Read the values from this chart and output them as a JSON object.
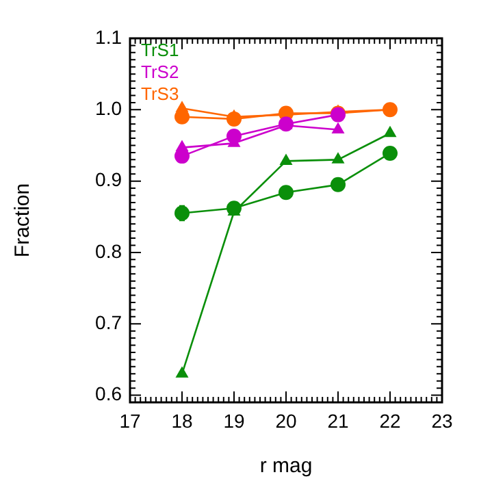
{
  "chart_data": {
    "type": "line",
    "xlabel": "r mag",
    "ylabel": "Fraction",
    "xlim": [
      17,
      23
    ],
    "xticks": [
      17,
      18,
      19,
      20,
      21,
      22,
      23
    ],
    "ylim": [
      0.59,
      1.1
    ],
    "yticks": [
      0.6,
      0.7,
      0.8,
      0.9,
      {
        "value": 1,
        "label": "1.0"
      },
      1.1
    ],
    "grid": false,
    "legend": "top left",
    "line_style": "solid",
    "series": [
      {
        "name": "TrS1",
        "color": "#0a8f0a",
        "marker": "circle",
        "x": [
          18,
          19,
          20,
          21,
          22
        ],
        "values": [
          0.855,
          0.862,
          0.884,
          0.895,
          0.939
        ],
        "errors": [
          0.01,
          null,
          null,
          null,
          null
        ]
      },
      {
        "color": "#0a8f0a",
        "marker": "triangle",
        "x": [
          18,
          19,
          20,
          21,
          22
        ],
        "values": [
          0.63,
          0.857,
          0.928,
          0.93,
          0.967
        ]
      },
      {
        "name": "TrS2",
        "color": "#cc00cc",
        "marker": "circle",
        "x": [
          18,
          19,
          20,
          21
        ],
        "values": [
          0.935,
          0.963,
          0.98,
          0.993
        ]
      },
      {
        "color": "#cc00cc",
        "marker": "triangle",
        "x": [
          18,
          19,
          20,
          21
        ],
        "values": [
          0.947,
          0.953,
          0.978,
          0.972
        ]
      },
      {
        "name": "TrS3",
        "color": "#ff6600",
        "marker": "circle",
        "x": [
          18,
          19,
          20,
          21,
          22
        ],
        "values": [
          0.99,
          0.987,
          0.995,
          0.995,
          1.0
        ]
      },
      {
        "color": "#ff6600",
        "marker": "triangle",
        "x": [
          18,
          19,
          20,
          21,
          22
        ],
        "values": [
          1.002,
          0.99,
          0.993,
          0.997,
          1.0
        ]
      }
    ]
  }
}
